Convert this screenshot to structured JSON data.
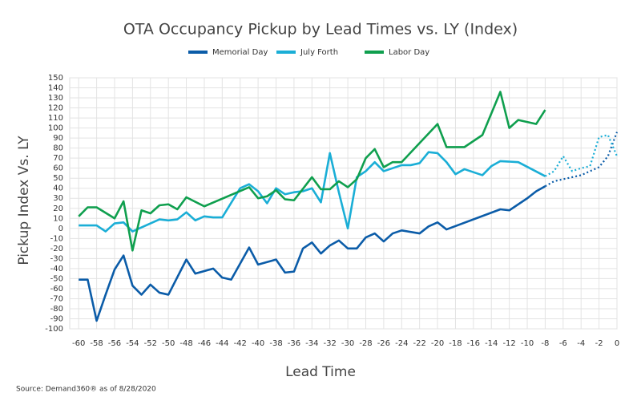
{
  "chart_data": {
    "type": "line",
    "title": "OTA Occupancy Pickup by Lead Times vs. LY (Index)",
    "x_label": "Lead Time",
    "y_label": "Pickup Index Vs. LY",
    "source": "Source: Demand360® as of 8/28/2020",
    "xlim": [
      -61,
      0
    ],
    "ylim": [
      -100,
      150
    ],
    "xticks": [
      -60,
      -58,
      -56,
      -54,
      -52,
      -50,
      -48,
      -46,
      -44,
      -42,
      -40,
      -38,
      -36,
      -34,
      -32,
      -30,
      -28,
      -26,
      -24,
      -22,
      -20,
      -18,
      -16,
      -14,
      -12,
      -10,
      -8,
      -6,
      -4,
      -2,
      0
    ],
    "yticks": [
      -100,
      -90,
      -80,
      -70,
      -60,
      -50,
      -40,
      -30,
      -20,
      -10,
      0,
      10,
      20,
      30,
      40,
      50,
      60,
      70,
      80,
      90,
      100,
      110,
      120,
      130,
      140,
      150
    ],
    "grid": true,
    "legend": "top",
    "dotted_from_x": -8,
    "series": [
      {
        "name": "Memorial Day",
        "color": "#0b5ca8",
        "x": [
          -60,
          -59,
          -58,
          -57,
          -56,
          -55,
          -54,
          -53,
          -52,
          -51,
          -50,
          -48,
          -47,
          -45,
          -44,
          -43,
          -41,
          -40,
          -38,
          -37,
          -36,
          -35,
          -34,
          -33,
          -32,
          -31,
          -30,
          -29,
          -28,
          -27,
          -26,
          -25,
          -24,
          -22,
          -21,
          -20,
          -19,
          -13,
          -12,
          -10,
          -9,
          -8,
          -7,
          -6,
          -5,
          -4,
          -3,
          -2,
          -1,
          0
        ],
        "values": [
          -51,
          -51,
          -92,
          -66,
          -41,
          -27,
          -57,
          -66,
          -56,
          -64,
          -66,
          -31,
          -45,
          -40,
          -49,
          -51,
          -19,
          -36,
          -31,
          -44,
          -43,
          -20,
          -14,
          -25,
          -17,
          -12,
          -20,
          -20,
          -9,
          -5,
          -13,
          -5,
          -2,
          -5,
          2,
          6,
          -1,
          19,
          18,
          30,
          37,
          42,
          47,
          49,
          51,
          53,
          57,
          61,
          72,
          96
        ]
      },
      {
        "name": "July Forth",
        "color": "#1aaed6",
        "x": [
          -60,
          -59,
          -58,
          -57,
          -56,
          -55,
          -54,
          -53,
          -52,
          -51,
          -50,
          -49,
          -48,
          -47,
          -46,
          -45,
          -44,
          -42,
          -41,
          -40,
          -39,
          -38,
          -37,
          -36,
          -35,
          -34,
          -33,
          -32,
          -31,
          -30,
          -29,
          -28,
          -27,
          -26,
          -25,
          -24,
          -23,
          -22,
          -21,
          -20,
          -19,
          -18,
          -17,
          -15,
          -14,
          -13,
          -11,
          -8,
          -7,
          -6,
          -5,
          -4,
          -3,
          -2,
          -1,
          0
        ],
        "values": [
          3,
          3,
          3,
          -3,
          5,
          6,
          -3,
          1,
          5,
          9,
          8,
          9,
          16,
          8,
          12,
          11,
          11,
          40,
          44,
          37,
          25,
          40,
          34,
          36,
          37,
          40,
          26,
          75,
          36,
          0,
          51,
          57,
          66,
          57,
          60,
          63,
          63,
          65,
          76,
          75,
          66,
          54,
          59,
          53,
          62,
          67,
          66,
          52,
          57,
          72,
          57,
          60,
          62,
          91,
          93,
          72
        ]
      },
      {
        "name": "Labor Day",
        "color": "#0f9f4e",
        "x": [
          -60,
          -59,
          -58,
          -56,
          -55,
          -54,
          -53,
          -52,
          -51,
          -50,
          -49,
          -48,
          -46,
          -41,
          -40,
          -39,
          -38,
          -37,
          -36,
          -34,
          -33,
          -32,
          -31,
          -30,
          -29,
          -28,
          -27,
          -26,
          -25,
          -24,
          -20,
          -19,
          -17,
          -15,
          -13,
          -12,
          -11,
          -9,
          -8
        ],
        "values": [
          12,
          21,
          21,
          10,
          27,
          -22,
          18,
          15,
          23,
          24,
          19,
          31,
          22,
          41,
          30,
          32,
          38,
          29,
          28,
          51,
          39,
          39,
          47,
          41,
          49,
          70,
          79,
          61,
          66,
          66,
          104,
          81,
          81,
          93,
          136,
          100,
          108,
          104,
          118
        ]
      }
    ]
  }
}
